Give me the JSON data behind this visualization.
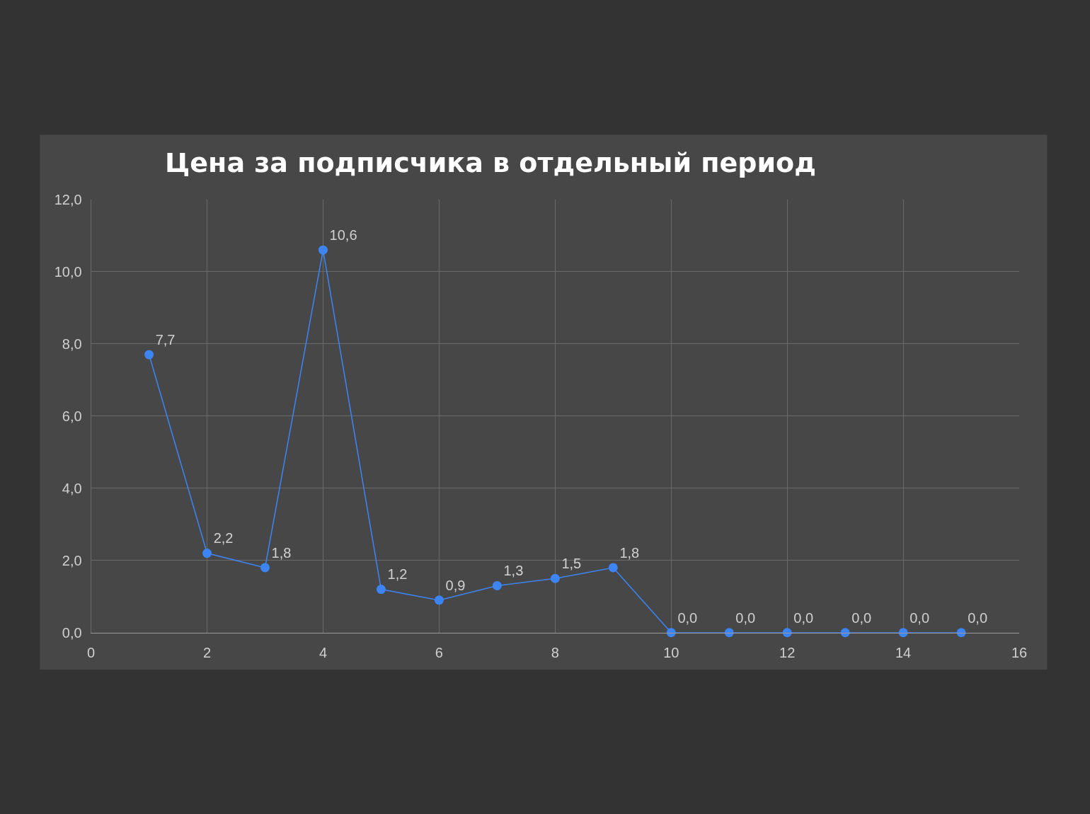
{
  "chart_data": {
    "type": "line",
    "title": "Цена за подписчика в отдельный период",
    "x": [
      1,
      2,
      3,
      4,
      5,
      6,
      7,
      8,
      9,
      10,
      11,
      12,
      13,
      14,
      15
    ],
    "series": [
      {
        "color": "#3d85f5",
        "values": [
          7.7,
          2.2,
          1.8,
          10.6,
          1.2,
          0.9,
          1.3,
          1.5,
          1.8,
          0.0,
          0.0,
          0.0,
          0.0,
          0.0,
          0.0
        ],
        "value_labels": [
          "7,7",
          "2,2",
          "1,8",
          "10,6",
          "1,2",
          "0,9",
          "1,3",
          "1,5",
          "1,8",
          "0,0",
          "0,0",
          "0,0",
          "0,0",
          "0,0",
          "0,0"
        ]
      }
    ],
    "xlim": [
      0,
      16
    ],
    "xticks": [
      0,
      2,
      4,
      6,
      8,
      10,
      12,
      14,
      16
    ],
    "ylim": [
      0,
      12
    ],
    "yticks": [
      {
        "value": 0,
        "label": "0,0"
      },
      {
        "value": 2,
        "label": "2,0"
      },
      {
        "value": 4,
        "label": "4,0"
      },
      {
        "value": 6,
        "label": "6,0"
      },
      {
        "value": 8,
        "label": "8,0"
      },
      {
        "value": 10,
        "label": "10,0"
      },
      {
        "value": 12,
        "label": "12,0"
      }
    ],
    "grid": true,
    "marker": "circle",
    "line_style": "solid"
  }
}
